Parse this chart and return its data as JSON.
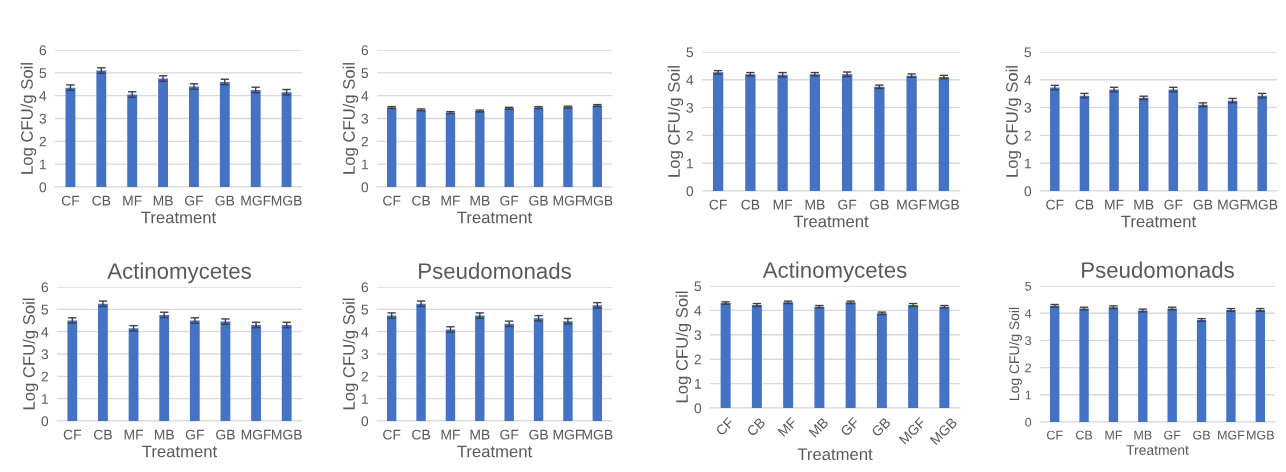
{
  "chart_data": [
    {
      "type": "bar",
      "xlabel": "Treatment",
      "ylabel": "Log CFU/g Soil",
      "categories": [
        "CF",
        "CB",
        "MF",
        "MB",
        "GF",
        "GB",
        "MGF",
        "MGB"
      ],
      "series": [
        {
          "color": "#4472c4",
          "values": [
            4.35,
            5.1,
            4.05,
            4.75,
            4.4,
            4.6,
            4.25,
            4.15
          ],
          "errors": [
            0.12,
            0.12,
            0.12,
            0.12,
            0.12,
            0.12,
            0.12,
            0.12
          ]
        }
      ],
      "ylim": [
        0,
        6
      ],
      "yticks": [
        0,
        1,
        2,
        3,
        4,
        5,
        6
      ],
      "grid": "y",
      "legend": false
    },
    {
      "type": "bar",
      "xlabel": "Treatment",
      "ylabel": "Log CFU/g Soil",
      "categories": [
        "CF",
        "CB",
        "MF",
        "MB",
        "GF",
        "GB",
        "MGF",
        "MGB"
      ],
      "series": [
        {
          "color": "#4472c4",
          "values": [
            3.48,
            3.38,
            3.26,
            3.33,
            3.45,
            3.48,
            3.5,
            3.57
          ],
          "errors": [
            0.04,
            0.04,
            0.04,
            0.04,
            0.04,
            0.04,
            0.04,
            0.04
          ]
        }
      ],
      "ylim": [
        0,
        6
      ],
      "yticks": [
        0,
        1,
        2,
        3,
        4,
        5,
        6
      ],
      "grid": "y",
      "legend": false
    },
    {
      "type": "bar",
      "xlabel": "Treatment",
      "ylabel": "Log CFU/g Soil",
      "categories": [
        "CF",
        "CB",
        "MF",
        "MB",
        "GF",
        "GB",
        "MGF",
        "MGB"
      ],
      "series": [
        {
          "color": "#4472c4",
          "values": [
            4.27,
            4.2,
            4.18,
            4.2,
            4.2,
            3.75,
            4.15,
            4.1
          ],
          "errors": [
            0.06,
            0.06,
            0.08,
            0.06,
            0.08,
            0.06,
            0.06,
            0.06
          ]
        }
      ],
      "ylim": [
        0,
        5
      ],
      "yticks": [
        0,
        1,
        2,
        3,
        4,
        5
      ],
      "grid": "y",
      "legend": false
    },
    {
      "type": "bar",
      "xlabel": "Treatment",
      "ylabel": "Log CFU/g Soil",
      "categories": [
        "CF",
        "CB",
        "MF",
        "MB",
        "GF",
        "GB",
        "MGF",
        "MGB"
      ],
      "series": [
        {
          "color": "#4472c4",
          "values": [
            3.72,
            3.43,
            3.65,
            3.35,
            3.65,
            3.1,
            3.25,
            3.43
          ],
          "errors": [
            0.08,
            0.08,
            0.08,
            0.06,
            0.08,
            0.07,
            0.08,
            0.08
          ]
        }
      ],
      "ylim": [
        0,
        5
      ],
      "yticks": [
        0,
        1,
        2,
        3,
        4,
        5
      ],
      "grid": "y",
      "legend": false
    },
    {
      "type": "bar",
      "title": "Actinomycetes",
      "xlabel": "Treatment",
      "ylabel": "Log CFU/g Soil",
      "categories": [
        "CF",
        "CB",
        "MF",
        "MB",
        "GF",
        "GB",
        "MGF",
        "MGB"
      ],
      "series": [
        {
          "color": "#4472c4",
          "values": [
            4.5,
            5.25,
            4.15,
            4.75,
            4.5,
            4.45,
            4.3,
            4.3
          ],
          "errors": [
            0.12,
            0.12,
            0.12,
            0.12,
            0.12,
            0.12,
            0.12,
            0.12
          ]
        }
      ],
      "ylim": [
        0,
        6
      ],
      "yticks": [
        0,
        1,
        2,
        3,
        4,
        5,
        6
      ],
      "grid": "y",
      "legend": false
    },
    {
      "type": "bar",
      "title": "Pseudomonads",
      "xlabel": "Treatment",
      "ylabel": "Log CFU/g Soil",
      "categories": [
        "CF",
        "CB",
        "MF",
        "MB",
        "GF",
        "GB",
        "MGF",
        "MGB"
      ],
      "series": [
        {
          "color": "#4472c4",
          "values": [
            4.72,
            5.25,
            4.1,
            4.72,
            4.35,
            4.6,
            4.47,
            5.18
          ],
          "errors": [
            0.12,
            0.12,
            0.12,
            0.12,
            0.12,
            0.12,
            0.12,
            0.12
          ]
        }
      ],
      "ylim": [
        0,
        6
      ],
      "yticks": [
        0,
        1,
        2,
        3,
        4,
        5,
        6
      ],
      "grid": "y",
      "legend": false
    },
    {
      "type": "bar",
      "title": "Actinomycetes",
      "xlabel": "Treatment",
      "ylabel": "Log CFU/g Soil",
      "categories": [
        "CF",
        "CB",
        "MF",
        "MB",
        "GF",
        "GB",
        "MGF",
        "MGB"
      ],
      "series": [
        {
          "color": "#4472c4",
          "values": [
            4.3,
            4.22,
            4.33,
            4.15,
            4.33,
            3.88,
            4.22,
            4.15
          ],
          "errors": [
            0.05,
            0.06,
            0.05,
            0.05,
            0.05,
            0.05,
            0.06,
            0.05
          ]
        }
      ],
      "ylim": [
        0,
        5
      ],
      "yticks": [
        0,
        1,
        2,
        3,
        4,
        5
      ],
      "grid": "y",
      "legend": false
    },
    {
      "type": "bar",
      "title": "Pseudomonads",
      "xlabel": "Treatment",
      "ylabel": "Log CFU/g Soil",
      "categories": [
        "CF",
        "CB",
        "MF",
        "MB",
        "GF",
        "GB",
        "MGF",
        "MGB"
      ],
      "series": [
        {
          "color": "#4472c4",
          "values": [
            4.27,
            4.17,
            4.22,
            4.1,
            4.17,
            3.75,
            4.12,
            4.12
          ],
          "errors": [
            0.05,
            0.05,
            0.05,
            0.05,
            0.05,
            0.05,
            0.05,
            0.05
          ]
        }
      ],
      "ylim": [
        0,
        5
      ],
      "yticks": [
        0,
        1,
        2,
        3,
        4,
        5
      ],
      "grid": "y",
      "legend": false
    }
  ]
}
